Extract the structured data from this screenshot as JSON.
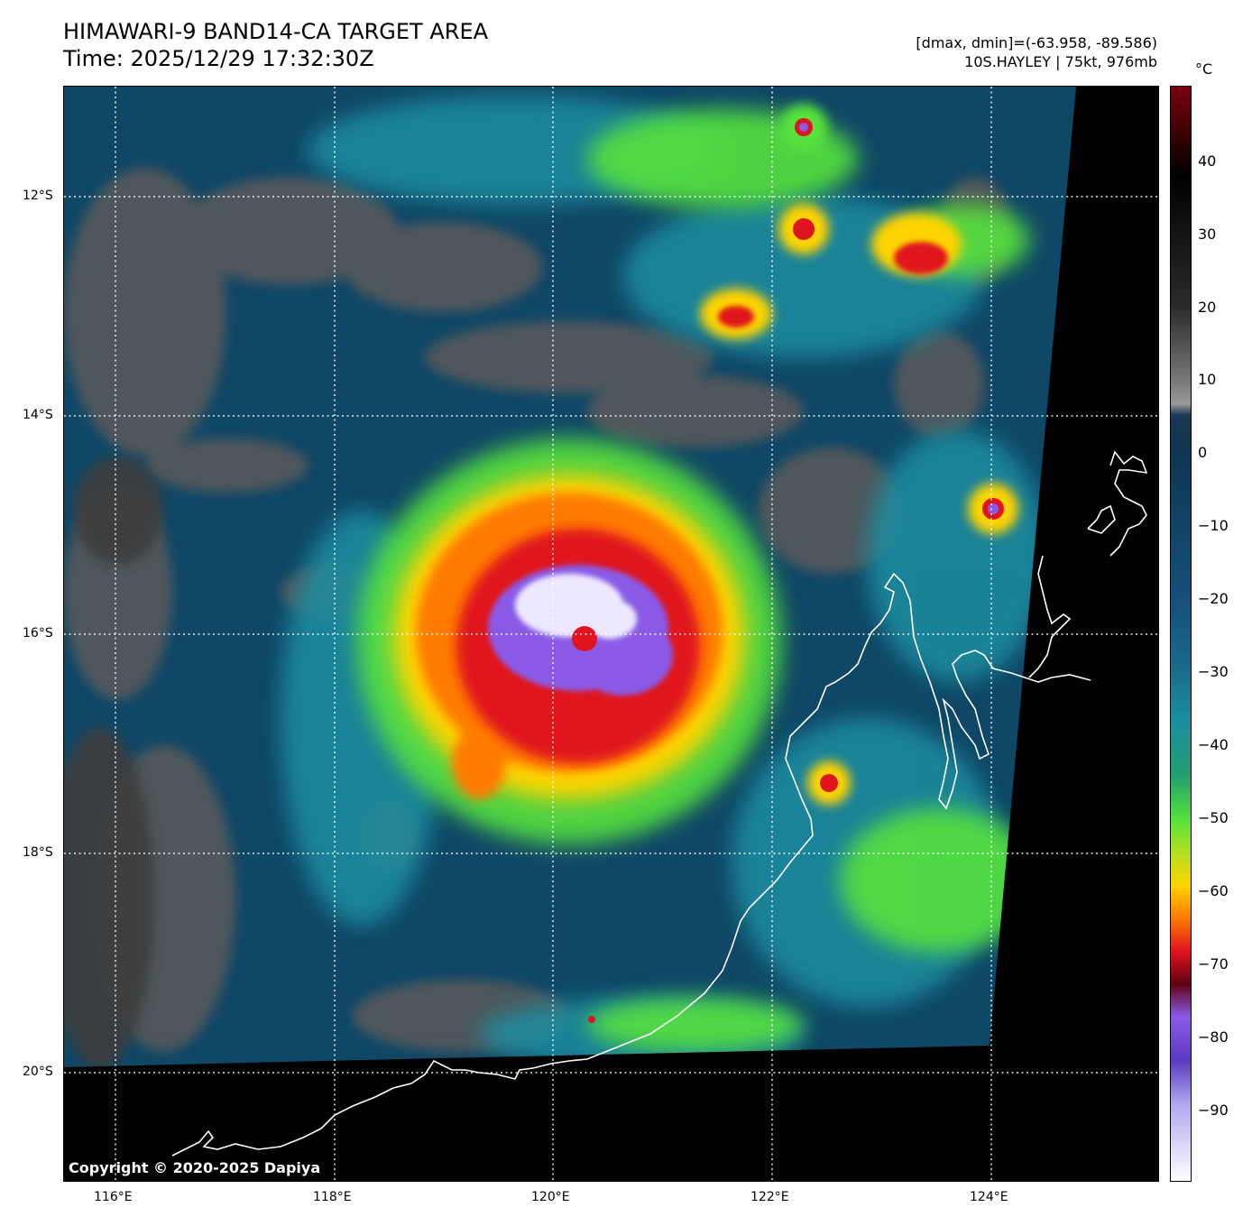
{
  "header": {
    "title_line1": "HIMAWARI-9 BAND14-CA TARGET AREA",
    "title_line2": "Time: 2025/12/29 17:32:30Z",
    "range_text": "[dmax, dmin]=(-63.958, -89.586)",
    "storm_text": "10S.HAYLEY | 75kt, 976mb"
  },
  "colorbar": {
    "unit": "°C",
    "ticks": [
      "40",
      "30",
      "20",
      "10",
      "0",
      "−10",
      "−20",
      "−30",
      "−40",
      "−50",
      "−60",
      "−70",
      "−80",
      "−90"
    ],
    "tick_values": [
      40,
      30,
      20,
      10,
      0,
      -10,
      -20,
      -30,
      -40,
      -50,
      -60,
      -70,
      -80,
      -90
    ],
    "vmin": -100,
    "vmax": 50
  },
  "map": {
    "lat_labels": [
      "12°S",
      "14°S",
      "16°S",
      "18°S",
      "20°S"
    ],
    "lon_labels": [
      "116°E",
      "118°E",
      "120°E",
      "122°E",
      "124°E"
    ],
    "lat_values": [
      -12,
      -14,
      -16,
      -18,
      -20
    ],
    "lon_values": [
      116,
      118,
      120,
      122,
      124
    ],
    "lon_range": [
      115.53,
      125.53
    ],
    "lat_range": [
      -21.0,
      -11.0
    ],
    "copyright": "Copyright © 2020-2025 Dapiya",
    "colors": {
      "coldest": "#ede8ff",
      "violet": "#8a5ae6",
      "red": "#e0141e",
      "orange": "#ff7a00",
      "yellow": "#ffd400",
      "green": "#56e23c",
      "teal": "#1a8ea0",
      "ocean": "#0f4766",
      "warm_gray": "#5a5a5a",
      "coast": "#ffffff"
    }
  }
}
